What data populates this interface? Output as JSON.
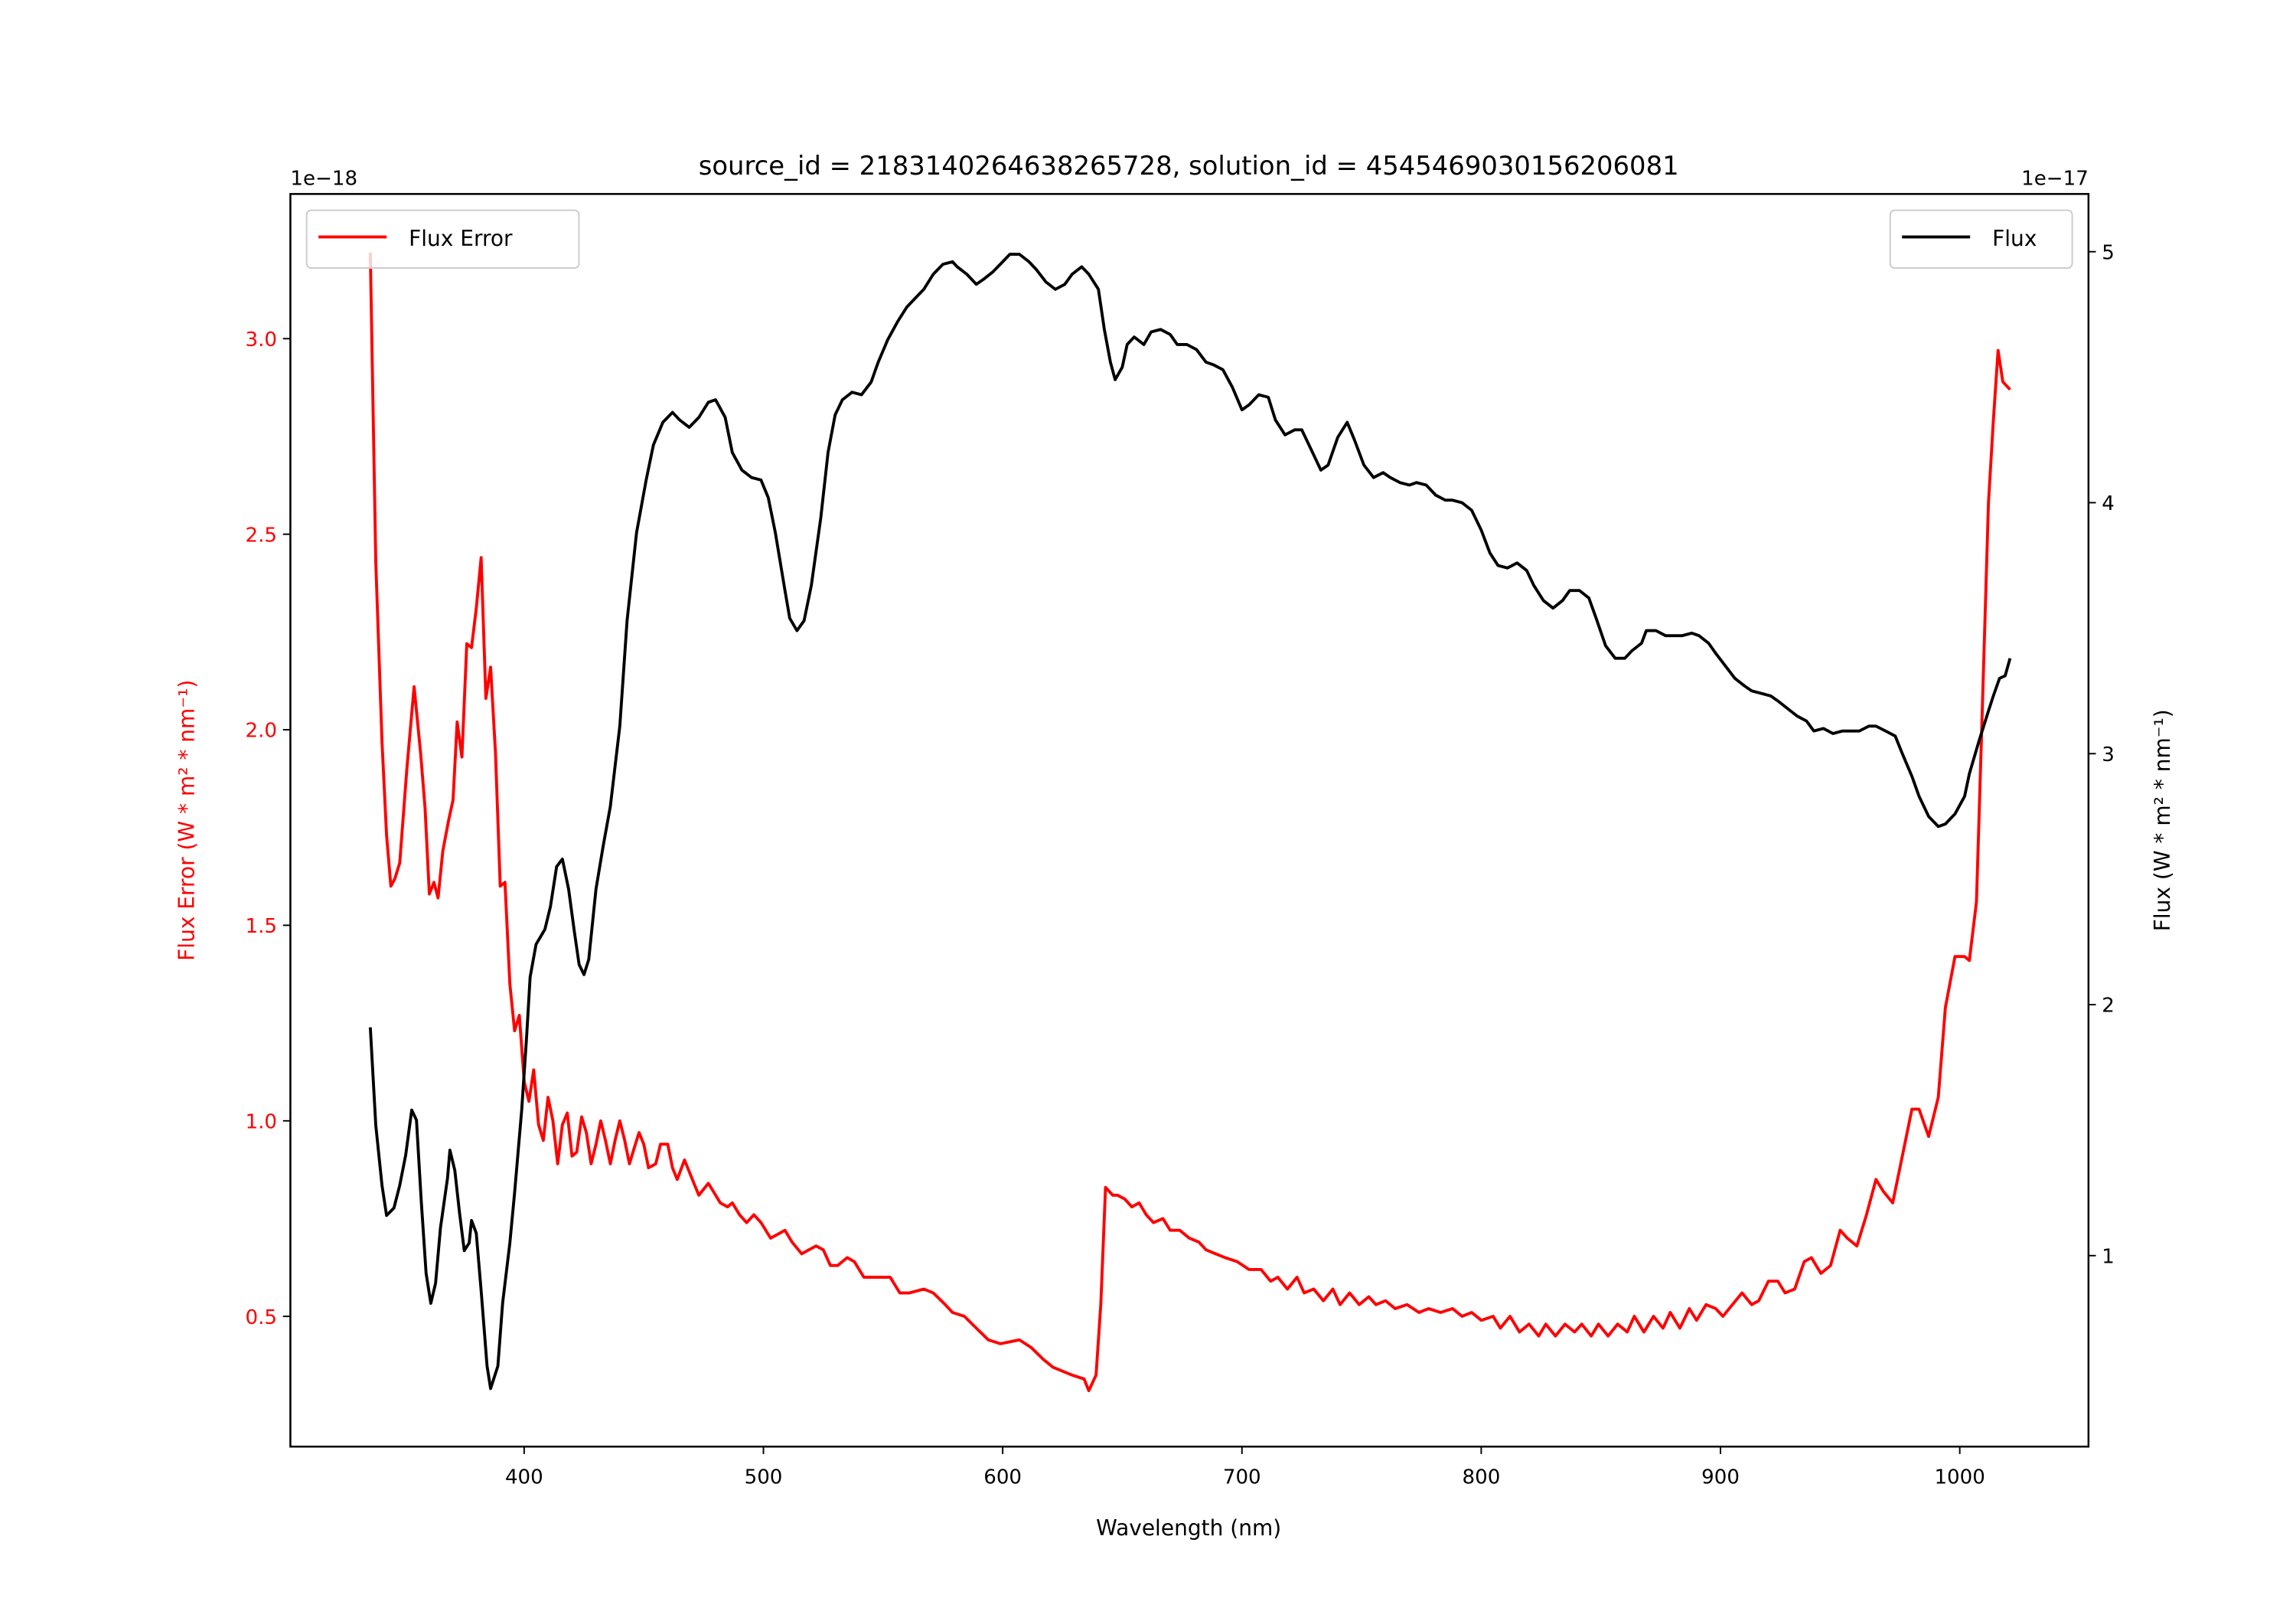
{
  "chart_data": {
    "type": "line",
    "title": "source_id = 2183140264638265728, solution_id = 4545469030156206081",
    "xlabel": "Wavelength (nm)",
    "ylabel_left": "Flux Error (W * m² * nm⁻¹)",
    "ylabel_right": "Flux (W * m² * nm⁻¹)",
    "offset_left": "1e−18",
    "offset_right": "1e−17",
    "xlim": [
      302.3,
      1053.8
    ],
    "ylim_left": [
      0.167,
      3.37
    ],
    "ylim_right": [
      0.239,
      5.23
    ],
    "xticks": [
      400,
      500,
      600,
      700,
      800,
      900,
      1000
    ],
    "yticks_left": [
      "0.5",
      "1.0",
      "1.5",
      "2.0",
      "2.5",
      "3.0"
    ],
    "yticks_right": [
      "1",
      "2",
      "3",
      "4",
      "5"
    ],
    "grid": false,
    "colors": {
      "flux_error": "#ff0000",
      "flux": "#000000",
      "left_axis_text": "#ff0000"
    },
    "legend": [
      {
        "label": "Flux Error",
        "placement": "upper-left"
      },
      {
        "label": "Flux",
        "placement": "upper-right"
      }
    ],
    "series": [
      {
        "name": "Flux Error",
        "axis": "left",
        "x": [
          335.7,
          338,
          340.6,
          342.5,
          344.3,
          346,
          348,
          351,
          354,
          356.7,
          358.6,
          360.4,
          362.3,
          364,
          366,
          368.5,
          370.3,
          372,
          374,
          376,
          378,
          380,
          382,
          384,
          386,
          388,
          390,
          392,
          394,
          396,
          398,
          400,
          402,
          404,
          406,
          408,
          410,
          412,
          414,
          416,
          418,
          420,
          422,
          424,
          426,
          428,
          430,
          432,
          434,
          436,
          438,
          440,
          442,
          444,
          446,
          448,
          450,
          452,
          455,
          457,
          460,
          462,
          464,
          467,
          469,
          471,
          473,
          477,
          479,
          482,
          485,
          487,
          490,
          493,
          496,
          499,
          503,
          506,
          509,
          512,
          516,
          519,
          522,
          525,
          528,
          531,
          535,
          538,
          542,
          546,
          550,
          553,
          557,
          561,
          567,
          571,
          576,
          579,
          584,
          589,
          594,
          599,
          607,
          612,
          617,
          621,
          629,
          634,
          636,
          639,
          641,
          643,
          646,
          648,
          651,
          654,
          657,
          660,
          663,
          667,
          670,
          674,
          678,
          682,
          685,
          689,
          693,
          698,
          703,
          708,
          712,
          715,
          719,
          723,
          726,
          730,
          734,
          738,
          741,
          745,
          749,
          753,
          756,
          760,
          764,
          769,
          774,
          778,
          783,
          788,
          792,
          796,
          800,
          805,
          808,
          812,
          816,
          820,
          824,
          827,
          831,
          835,
          839,
          842,
          846,
          849,
          853,
          857,
          861,
          864,
          868,
          872,
          876,
          879,
          883,
          887,
          890,
          894,
          898,
          901,
          905,
          909,
          913,
          916,
          920,
          924,
          927,
          931,
          935,
          938,
          942,
          946,
          950,
          953,
          957,
          961,
          965,
          968,
          972,
          976,
          980,
          983,
          987,
          991,
          994,
          998,
          1002,
          1004,
          1007,
          1009,
          1012,
          1014,
          1016,
          1018,
          1021
        ],
        "y": [
          3.22,
          2.43,
          1.97,
          1.73,
          1.6,
          1.62,
          1.66,
          1.9,
          2.11,
          1.94,
          1.8,
          1.58,
          1.61,
          1.57,
          1.69,
          1.77,
          1.82,
          2.02,
          1.93,
          2.22,
          2.21,
          2.31,
          2.44,
          2.08,
          2.16,
          1.94,
          1.6,
          1.61,
          1.35,
          1.23,
          1.27,
          1.1,
          1.05,
          1.13,
          0.99,
          0.95,
          1.06,
          1.0,
          0.89,
          0.99,
          1.02,
          0.91,
          0.92,
          1.01,
          0.97,
          0.89,
          0.94,
          1.0,
          0.95,
          0.89,
          0.95,
          1.0,
          0.95,
          0.89,
          0.93,
          0.97,
          0.94,
          0.88,
          0.89,
          0.94,
          0.94,
          0.88,
          0.85,
          0.9,
          0.87,
          0.84,
          0.81,
          0.84,
          0.82,
          0.79,
          0.78,
          0.79,
          0.76,
          0.74,
          0.76,
          0.74,
          0.7,
          0.71,
          0.72,
          0.69,
          0.66,
          0.67,
          0.68,
          0.67,
          0.63,
          0.63,
          0.65,
          0.64,
          0.6,
          0.6,
          0.6,
          0.6,
          0.56,
          0.56,
          0.57,
          0.56,
          0.53,
          0.51,
          0.5,
          0.47,
          0.44,
          0.43,
          0.44,
          0.42,
          0.39,
          0.37,
          0.35,
          0.34,
          0.31,
          0.35,
          0.53,
          0.83,
          0.81,
          0.81,
          0.8,
          0.78,
          0.79,
          0.76,
          0.74,
          0.75,
          0.72,
          0.72,
          0.7,
          0.69,
          0.67,
          0.66,
          0.65,
          0.64,
          0.62,
          0.62,
          0.59,
          0.6,
          0.57,
          0.6,
          0.56,
          0.57,
          0.54,
          0.57,
          0.53,
          0.56,
          0.53,
          0.55,
          0.53,
          0.54,
          0.52,
          0.53,
          0.51,
          0.52,
          0.51,
          0.52,
          0.5,
          0.51,
          0.49,
          0.5,
          0.47,
          0.5,
          0.46,
          0.48,
          0.45,
          0.48,
          0.45,
          0.48,
          0.46,
          0.48,
          0.45,
          0.48,
          0.45,
          0.48,
          0.46,
          0.5,
          0.46,
          0.5,
          0.47,
          0.51,
          0.47,
          0.52,
          0.49,
          0.53,
          0.52,
          0.5,
          0.53,
          0.56,
          0.53,
          0.54,
          0.59,
          0.59,
          0.56,
          0.57,
          0.64,
          0.65,
          0.61,
          0.63,
          0.72,
          0.7,
          0.68,
          0.76,
          0.85,
          0.82,
          0.79,
          0.91,
          1.03,
          1.03,
          0.96,
          1.06,
          1.29,
          1.42,
          1.42,
          1.41,
          1.56,
          1.97,
          2.58,
          2.79,
          2.97,
          2.89,
          2.87
        ]
      },
      {
        "name": "Flux",
        "axis": "right",
        "x": [
          335.7,
          338,
          340.6,
          342.5,
          345.6,
          348,
          350.5,
          353,
          355,
          357,
          359,
          361,
          363,
          365,
          368,
          369,
          371,
          373,
          375,
          377,
          378,
          380,
          382,
          384.5,
          386,
          389,
          391,
          394,
          396,
          399,
          401,
          402.5,
          405,
          408.7,
          411,
          413.6,
          416,
          418.6,
          421,
          423,
          425,
          427,
          430,
          433,
          436,
          440,
          443,
          447,
          451,
          454,
          458,
          462,
          465,
          469,
          473,
          477,
          480,
          484,
          487,
          491,
          495,
          499,
          502,
          505,
          509,
          511,
          514,
          517,
          520,
          524,
          527,
          530,
          533,
          537,
          541,
          545,
          548,
          552,
          556,
          560,
          564,
          567,
          571,
          575,
          579,
          581,
          585,
          589,
          592,
          596,
          600,
          603,
          607,
          611,
          614,
          618,
          622,
          626,
          629,
          633,
          636,
          640,
          642.5,
          645,
          647,
          650,
          652,
          655,
          659,
          662,
          666,
          670,
          673,
          677,
          681,
          685,
          688,
          692,
          696,
          700,
          703,
          707,
          711,
          714,
          718,
          722,
          725,
          729,
          733,
          736,
          740,
          744,
          747,
          751,
          755,
          759,
          762,
          766,
          770,
          773,
          777,
          781,
          785,
          788,
          792,
          796,
          800,
          803.6,
          807,
          811,
          815,
          819,
          822,
          826,
          830,
          834,
          837,
          841,
          845,
          848,
          852,
          856,
          860,
          863,
          867,
          869,
          873,
          877,
          880,
          884,
          888,
          891,
          895,
          898,
          902,
          906,
          910,
          913,
          917,
          921,
          924,
          928,
          932,
          936,
          939,
          943,
          947,
          951,
          954,
          958,
          962,
          965,
          969,
          973,
          976,
          980,
          983,
          987,
          991,
          994,
          998,
          1002,
          1004,
          1008,
          1012,
          1014,
          1016.6,
          1019,
          1021
        ],
        "y": [
          1.91,
          1.52,
          1.28,
          1.16,
          1.19,
          1.28,
          1.4,
          1.58,
          1.54,
          1.22,
          0.93,
          0.81,
          0.89,
          1.11,
          1.31,
          1.42,
          1.34,
          1.17,
          1.02,
          1.05,
          1.14,
          1.09,
          0.86,
          0.56,
          0.47,
          0.56,
          0.81,
          1.05,
          1.25,
          1.58,
          1.87,
          2.11,
          2.24,
          2.3,
          2.39,
          2.55,
          2.58,
          2.46,
          2.29,
          2.16,
          2.12,
          2.18,
          2.46,
          2.63,
          2.79,
          3.11,
          3.53,
          3.88,
          4.09,
          4.23,
          4.32,
          4.36,
          4.33,
          4.3,
          4.34,
          4.4,
          4.41,
          4.34,
          4.2,
          4.13,
          4.1,
          4.09,
          4.02,
          3.88,
          3.65,
          3.54,
          3.49,
          3.53,
          3.67,
          3.94,
          4.2,
          4.35,
          4.41,
          4.44,
          4.43,
          4.48,
          4.56,
          4.65,
          4.72,
          4.78,
          4.82,
          4.85,
          4.91,
          4.95,
          4.96,
          4.94,
          4.91,
          4.87,
          4.89,
          4.92,
          4.96,
          4.99,
          4.99,
          4.96,
          4.93,
          4.88,
          4.85,
          4.87,
          4.91,
          4.94,
          4.91,
          4.85,
          4.69,
          4.56,
          4.49,
          4.54,
          4.63,
          4.66,
          4.63,
          4.68,
          4.69,
          4.67,
          4.63,
          4.63,
          4.61,
          4.56,
          4.55,
          4.53,
          4.46,
          4.37,
          4.39,
          4.43,
          4.42,
          4.33,
          4.27,
          4.29,
          4.29,
          4.21,
          4.13,
          4.15,
          4.26,
          4.32,
          4.25,
          4.15,
          4.1,
          4.12,
          4.1,
          4.08,
          4.07,
          4.08,
          4.07,
          4.03,
          4.01,
          4.01,
          4.0,
          3.97,
          3.89,
          3.8,
          3.75,
          3.74,
          3.76,
          3.73,
          3.67,
          3.61,
          3.58,
          3.61,
          3.65,
          3.65,
          3.62,
          3.54,
          3.43,
          3.38,
          3.38,
          3.41,
          3.44,
          3.49,
          3.49,
          3.47,
          3.47,
          3.47,
          3.48,
          3.47,
          3.44,
          3.4,
          3.35,
          3.3,
          3.27,
          3.25,
          3.24,
          3.23,
          3.21,
          3.18,
          3.15,
          3.13,
          3.09,
          3.1,
          3.08,
          3.09,
          3.09,
          3.09,
          3.11,
          3.11,
          3.09,
          3.07,
          3.0,
          2.91,
          2.83,
          2.75,
          2.71,
          2.72,
          2.76,
          2.83,
          2.92,
          3.05,
          3.17,
          3.23,
          3.3,
          3.31,
          3.38
        ]
      }
    ]
  }
}
